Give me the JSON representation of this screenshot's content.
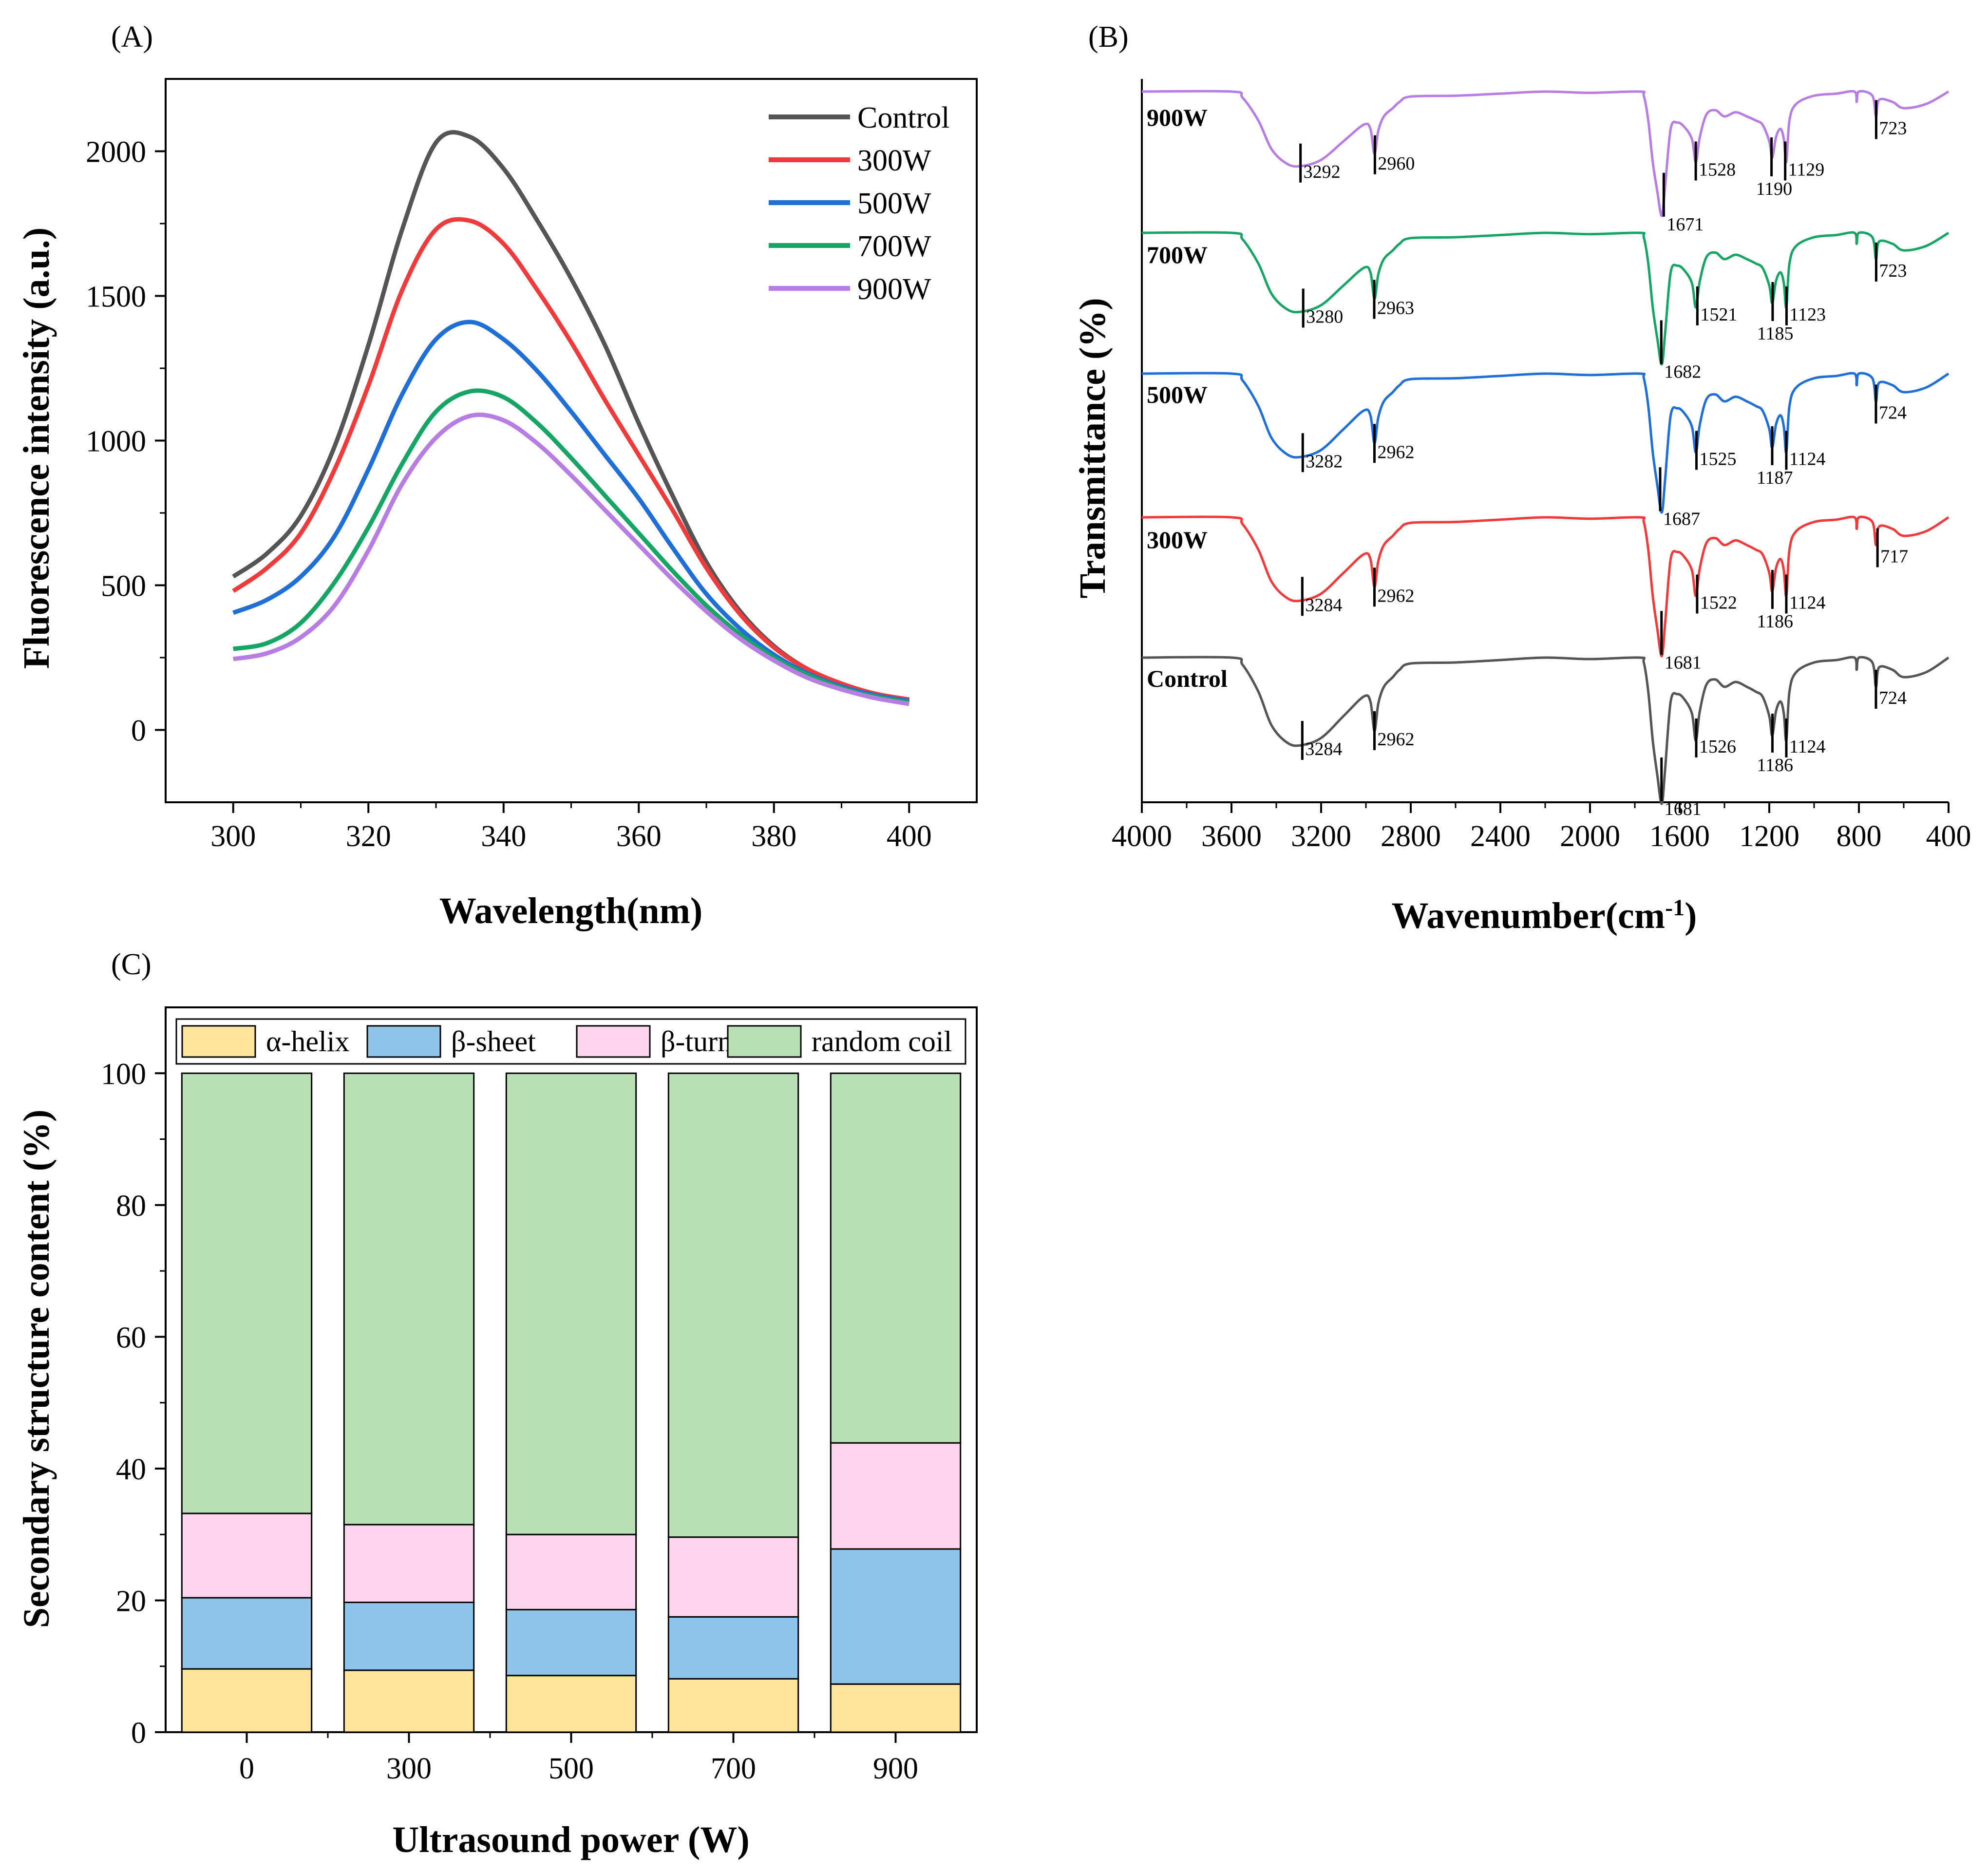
{
  "figure": {
    "panels": [
      "(A)",
      "(B)",
      "(C)"
    ]
  },
  "chart_data": [
    {
      "type": "line",
      "panel": "(A)",
      "title": "",
      "xlabel": "Wavelength(nm)",
      "ylabel": "Fluorescence intensity (a.u.)",
      "xlim": [
        290,
        410
      ],
      "ylim": [
        -250,
        2250
      ],
      "xticks": [
        300,
        320,
        340,
        360,
        380,
        400
      ],
      "yticks": [
        0,
        500,
        1000,
        1500,
        2000
      ],
      "x": [
        300,
        305,
        310,
        315,
        320,
        325,
        330,
        335,
        340,
        345,
        350,
        355,
        360,
        365,
        370,
        375,
        380,
        385,
        390,
        395,
        400
      ],
      "series": [
        {
          "name": "Control",
          "color": "#555555",
          "values": [
            530,
            610,
            740,
            980,
            1330,
            1730,
            2030,
            2050,
            1940,
            1760,
            1560,
            1330,
            1060,
            810,
            580,
            410,
            290,
            210,
            160,
            125,
            105
          ]
        },
        {
          "name": "300W",
          "color": "#ef3b3b",
          "values": [
            480,
            560,
            680,
            900,
            1190,
            1520,
            1730,
            1760,
            1680,
            1520,
            1340,
            1140,
            950,
            760,
            560,
            400,
            285,
            210,
            160,
            125,
            105
          ]
        },
        {
          "name": "500W",
          "color": "#1f6fd6",
          "values": [
            405,
            450,
            530,
            670,
            900,
            1160,
            1350,
            1410,
            1350,
            1240,
            1100,
            950,
            800,
            630,
            470,
            350,
            260,
            195,
            150,
            120,
            100
          ]
        },
        {
          "name": "700W",
          "color": "#17a566",
          "values": [
            280,
            300,
            370,
            510,
            700,
            920,
            1100,
            1170,
            1150,
            1060,
            940,
            810,
            680,
            550,
            430,
            330,
            250,
            190,
            145,
            115,
            95
          ]
        },
        {
          "name": "900W",
          "color": "#b87de3",
          "values": [
            245,
            265,
            320,
            430,
            620,
            850,
            1010,
            1085,
            1070,
            990,
            880,
            760,
            640,
            520,
            410,
            315,
            240,
            180,
            140,
            110,
            90
          ]
        }
      ]
    },
    {
      "type": "line",
      "panel": "(B)",
      "title": "",
      "xlabel": "Wavenumber(cm",
      "xlabel_sup": "-1",
      "xlabel_end": ")",
      "ylabel": "Transmittance (%)",
      "xlim": [
        4000,
        400
      ],
      "xticks": [
        4000,
        3600,
        3200,
        2800,
        2400,
        2000,
        1600,
        1200,
        800,
        400
      ],
      "series": [
        {
          "name": "900W",
          "color": "#b87de3",
          "peaks": [
            3292,
            2960,
            1671,
            1528,
            1190,
            1129,
            723
          ]
        },
        {
          "name": "700W",
          "color": "#17a566",
          "peaks": [
            3280,
            2963,
            1682,
            1521,
            1185,
            1123,
            723
          ]
        },
        {
          "name": "500W",
          "color": "#1f6fd6",
          "peaks": [
            3282,
            2962,
            1687,
            1525,
            1187,
            1124,
            724
          ]
        },
        {
          "name": "300W",
          "color": "#ef3b3b",
          "peaks": [
            3284,
            2962,
            1681,
            1522,
            1186,
            1124,
            717
          ]
        },
        {
          "name": "Control",
          "color": "#555555",
          "peaks": [
            3284,
            2962,
            1681,
            1526,
            1186,
            1124,
            724
          ]
        }
      ]
    },
    {
      "type": "bar",
      "stacked": true,
      "panel": "(C)",
      "title": "",
      "xlabel": "Ultrasound power (W)",
      "ylabel": "Secondary structure content (%)",
      "categories": [
        "0",
        "300",
        "500",
        "700",
        "900"
      ],
      "ylim": [
        0,
        110
      ],
      "yticks": [
        0,
        20,
        40,
        60,
        80,
        100
      ],
      "legend_position": "top",
      "series": [
        {
          "name": "α-helix",
          "color": "#fde49b",
          "values": [
            9.6,
            9.4,
            8.6,
            8.1,
            7.3
          ]
        },
        {
          "name": "β-sheet",
          "color": "#8ec4ea",
          "values": [
            10.8,
            10.3,
            10.0,
            9.4,
            20.5
          ]
        },
        {
          "name": "β-turn",
          "color": "#fcd4ec",
          "values": [
            12.8,
            11.8,
            11.4,
            12.1,
            16.1
          ]
        },
        {
          "name": "random coil",
          "color": "#b9e0b5",
          "values": [
            66.8,
            68.5,
            70.0,
            70.4,
            56.1
          ]
        }
      ]
    }
  ]
}
